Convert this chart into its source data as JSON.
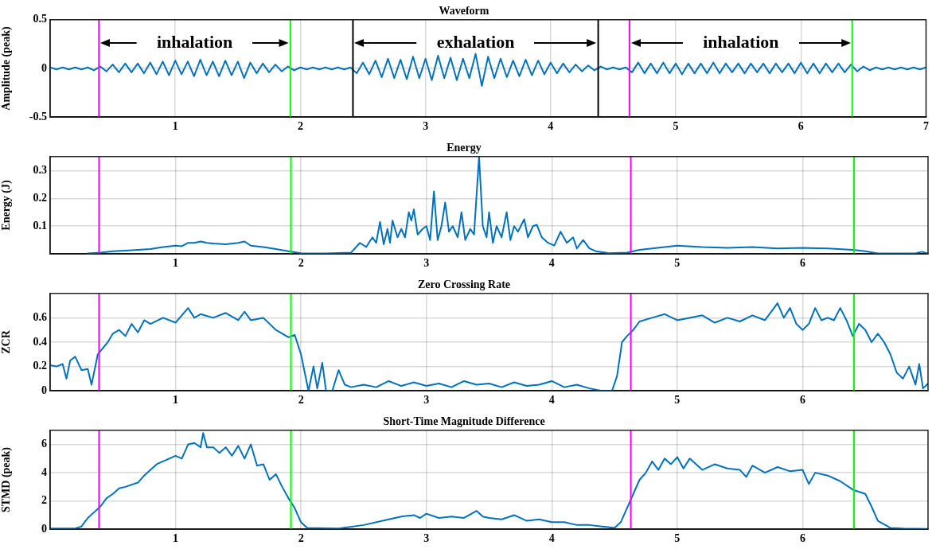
{
  "chart_data": [
    {
      "type": "line",
      "title": "Waveform",
      "ylabel": "Amplitude (peak)",
      "xlim": [
        0,
        7
      ],
      "xticks": [
        1,
        2,
        3,
        4,
        5,
        6,
        7
      ],
      "ylim": [
        -0.5,
        0.5
      ],
      "yticks": [
        -0.5,
        0,
        0.5
      ],
      "grid": true,
      "legend": false,
      "x": [
        0,
        0.05,
        0.1,
        0.15,
        0.2,
        0.25,
        0.3,
        0.35,
        0.4,
        0.45,
        0.5,
        0.55,
        0.6,
        0.65,
        0.7,
        0.75,
        0.8,
        0.85,
        0.9,
        0.95,
        1,
        1.05,
        1.1,
        1.15,
        1.2,
        1.25,
        1.3,
        1.35,
        1.4,
        1.45,
        1.5,
        1.55,
        1.6,
        1.65,
        1.7,
        1.75,
        1.8,
        1.85,
        1.9,
        1.95,
        2,
        2.05,
        2.1,
        2.15,
        2.2,
        2.25,
        2.3,
        2.35,
        2.4,
        2.45,
        2.5,
        2.55,
        2.6,
        2.65,
        2.7,
        2.75,
        2.8,
        2.85,
        2.9,
        2.95,
        3,
        3.05,
        3.1,
        3.15,
        3.2,
        3.25,
        3.3,
        3.35,
        3.4,
        3.45,
        3.5,
        3.55,
        3.6,
        3.65,
        3.7,
        3.75,
        3.8,
        3.85,
        3.9,
        3.95,
        4,
        4.05,
        4.1,
        4.15,
        4.2,
        4.25,
        4.3,
        4.35,
        4.4,
        4.45,
        4.5,
        4.55,
        4.6,
        4.65,
        4.7,
        4.75,
        4.8,
        4.85,
        4.9,
        4.95,
        5,
        5.05,
        5.1,
        5.15,
        5.2,
        5.25,
        5.3,
        5.35,
        5.4,
        5.45,
        5.5,
        5.55,
        5.6,
        5.65,
        5.7,
        5.75,
        5.8,
        5.85,
        5.9,
        5.95,
        6,
        6.05,
        6.1,
        6.15,
        6.2,
        6.25,
        6.3,
        6.35,
        6.4,
        6.45,
        6.5,
        6.55,
        6.6,
        6.65,
        6.7,
        6.75,
        6.8,
        6.85,
        6.9,
        6.95,
        7
      ],
      "series": [
        {
          "color": "#0072bd",
          "values": [
            0.01,
            -0.01,
            0.01,
            -0.01,
            0.01,
            -0.01,
            0.01,
            -0.02,
            0.02,
            -0.03,
            0.04,
            -0.04,
            0.05,
            -0.04,
            0.05,
            -0.05,
            0.06,
            -0.06,
            0.07,
            -0.07,
            0.08,
            -0.06,
            0.07,
            -0.08,
            0.09,
            -0.07,
            0.07,
            -0.08,
            0.08,
            -0.07,
            0.07,
            -0.1,
            0.06,
            -0.05,
            0.05,
            -0.04,
            0.04,
            -0.03,
            0.02,
            -0.02,
            0.01,
            -0.01,
            0.01,
            -0.01,
            0.01,
            -0.01,
            0.01,
            -0.01,
            0.01,
            -0.05,
            0.06,
            -0.06,
            0.08,
            -0.09,
            0.1,
            -0.1,
            0.09,
            -0.11,
            0.12,
            -0.1,
            0.1,
            -0.12,
            0.13,
            -0.1,
            0.11,
            -0.12,
            0.1,
            -0.1,
            0.15,
            -0.18,
            0.12,
            -0.1,
            0.1,
            -0.09,
            0.08,
            -0.08,
            0.09,
            -0.07,
            0.08,
            -0.06,
            0.06,
            -0.05,
            0.05,
            -0.04,
            0.04,
            -0.03,
            0.03,
            -0.02,
            0.02,
            -0.01,
            0.01,
            -0.01,
            0.01,
            -0.04,
            0.06,
            -0.05,
            0.05,
            -0.05,
            0.06,
            -0.05,
            0.05,
            -0.06,
            0.05,
            -0.05,
            0.05,
            -0.05,
            0.06,
            -0.05,
            0.05,
            -0.04,
            0.05,
            -0.05,
            0.05,
            -0.04,
            0.05,
            -0.05,
            0.05,
            -0.04,
            0.05,
            -0.05,
            0.06,
            -0.05,
            0.05,
            -0.05,
            0.05,
            -0.04,
            0.05,
            -0.04,
            0.04,
            -0.03,
            0.02,
            -0.02,
            0.01,
            -0.01,
            0.01,
            -0.01,
            0.01,
            -0.01,
            0.01,
            -0.01,
            0.01
          ]
        }
      ],
      "ref_lines": [
        {
          "axis": "x",
          "value": 0.39,
          "color": "#ff00ff"
        },
        {
          "axis": "x",
          "value": 1.92,
          "color": "#00ff00"
        },
        {
          "axis": "x",
          "value": 2.42,
          "color": "#000000"
        },
        {
          "axis": "x",
          "value": 4.38,
          "color": "#000000"
        },
        {
          "axis": "x",
          "value": 4.63,
          "color": "#ff00ff"
        },
        {
          "axis": "x",
          "value": 6.41,
          "color": "#00ff00"
        }
      ],
      "annotations": [
        "inhalation",
        "exhalation",
        "inhalation"
      ]
    },
    {
      "type": "line",
      "title": "Energy",
      "ylabel": "Energy (J)",
      "xlim": [
        0,
        7
      ],
      "xticks": [
        1,
        2,
        3,
        4,
        5,
        6
      ],
      "ylim": [
        0,
        0.35
      ],
      "yticks": [
        0.1,
        0.2,
        0.3
      ],
      "grid": true,
      "legend": false,
      "series": [
        {
          "color": "#0072bd",
          "x": [
            0.3,
            0.4,
            0.5,
            0.6,
            0.7,
            0.8,
            0.9,
            1,
            1.05,
            1.1,
            1.15,
            1.2,
            1.25,
            1.3,
            1.4,
            1.5,
            1.55,
            1.6,
            1.7,
            1.8,
            1.9,
            2,
            2.2,
            2.4,
            2.47,
            2.52,
            2.57,
            2.6,
            2.63,
            2.66,
            2.69,
            2.71,
            2.73,
            2.77,
            2.8,
            2.83,
            2.86,
            2.88,
            2.9,
            2.93,
            2.97,
            3,
            3.03,
            3.06,
            3.09,
            3.12,
            3.15,
            3.18,
            3.21,
            3.25,
            3.28,
            3.31,
            3.35,
            3.38,
            3.42,
            3.45,
            3.48,
            3.5,
            3.53,
            3.56,
            3.6,
            3.64,
            3.67,
            3.7,
            3.73,
            3.78,
            3.81,
            3.85,
            3.88,
            3.92,
            3.97,
            4.02,
            4.07,
            4.12,
            4.17,
            4.2,
            4.25,
            4.3,
            4.35,
            4.45,
            4.6,
            4.7,
            4.8,
            4.9,
            5,
            5.2,
            5.4,
            5.6,
            5.8,
            6,
            6.2,
            6.4,
            6.5,
            6.6,
            6.9,
            6.95,
            7
          ],
          "values": [
            0.002,
            0.005,
            0.01,
            0.012,
            0.015,
            0.018,
            0.025,
            0.03,
            0.028,
            0.04,
            0.04,
            0.045,
            0.04,
            0.038,
            0.035,
            0.04,
            0.045,
            0.03,
            0.025,
            0.018,
            0.01,
            0.003,
            0.002,
            0.005,
            0.04,
            0.025,
            0.06,
            0.04,
            0.115,
            0.035,
            0.09,
            0.04,
            0.12,
            0.06,
            0.09,
            0.06,
            0.15,
            0.12,
            0.16,
            0.07,
            0.09,
            0.1,
            0.05,
            0.225,
            0.05,
            0.1,
            0.185,
            0.08,
            0.1,
            0.06,
            0.15,
            0.05,
            0.09,
            0.07,
            0.35,
            0.1,
            0.06,
            0.15,
            0.04,
            0.1,
            0.06,
            0.15,
            0.05,
            0.1,
            0.08,
            0.125,
            0.06,
            0.1,
            0.105,
            0.06,
            0.04,
            0.03,
            0.08,
            0.04,
            0.06,
            0.02,
            0.05,
            0.02,
            0.01,
            0.003,
            0.005,
            0.015,
            0.02,
            0.025,
            0.03,
            0.025,
            0.022,
            0.025,
            0.02,
            0.022,
            0.02,
            0.015,
            0.01,
            0.002,
            0.002,
            0.008,
            0.002
          ]
        }
      ],
      "ref_lines": [
        {
          "axis": "x",
          "value": 0.39,
          "color": "#ff00ff"
        },
        {
          "axis": "x",
          "value": 1.92,
          "color": "#00ff00"
        },
        {
          "axis": "x",
          "value": 4.63,
          "color": "#ff00ff"
        },
        {
          "axis": "x",
          "value": 6.41,
          "color": "#00ff00"
        }
      ]
    },
    {
      "type": "line",
      "title": "Zero Crossing Rate",
      "ylabel": "ZCR",
      "xlim": [
        0,
        7
      ],
      "xticks": [
        1,
        2,
        3,
        4,
        5,
        6
      ],
      "ylim": [
        0,
        0.8
      ],
      "yticks": [
        0,
        0.2,
        0.4,
        0.6
      ],
      "grid": true,
      "legend": false,
      "series": [
        {
          "color": "#0072bd",
          "x": [
            0,
            0.05,
            0.1,
            0.13,
            0.16,
            0.2,
            0.25,
            0.3,
            0.33,
            0.38,
            0.42,
            0.46,
            0.5,
            0.55,
            0.6,
            0.65,
            0.7,
            0.75,
            0.8,
            0.9,
            1,
            1.05,
            1.1,
            1.15,
            1.2,
            1.3,
            1.4,
            1.5,
            1.55,
            1.6,
            1.7,
            1.8,
            1.9,
            1.95,
            2,
            2.03,
            2.06,
            2.1,
            2.13,
            2.17,
            2.2,
            2.25,
            2.3,
            2.35,
            2.4,
            2.5,
            2.6,
            2.7,
            2.8,
            2.9,
            3,
            3.1,
            3.2,
            3.3,
            3.4,
            3.5,
            3.6,
            3.7,
            3.8,
            3.9,
            4,
            4.1,
            4.2,
            4.3,
            4.4,
            4.48,
            4.52,
            4.56,
            4.6,
            4.65,
            4.7,
            4.8,
            4.9,
            5,
            5.1,
            5.2,
            5.3,
            5.4,
            5.5,
            5.6,
            5.7,
            5.8,
            5.85,
            5.9,
            5.95,
            6,
            6.05,
            6.1,
            6.15,
            6.2,
            6.25,
            6.3,
            6.35,
            6.4,
            6.45,
            6.5,
            6.55,
            6.6,
            6.65,
            6.7,
            6.75,
            6.8,
            6.85,
            6.9,
            6.93,
            6.96,
            7
          ],
          "values": [
            0.21,
            0.2,
            0.22,
            0.1,
            0.25,
            0.28,
            0.17,
            0.18,
            0.05,
            0.3,
            0.35,
            0.4,
            0.47,
            0.5,
            0.45,
            0.55,
            0.48,
            0.58,
            0.55,
            0.6,
            0.56,
            0.62,
            0.68,
            0.6,
            0.63,
            0.6,
            0.64,
            0.58,
            0.65,
            0.58,
            0.6,
            0.5,
            0.44,
            0.46,
            0.3,
            0.15,
            0,
            0.2,
            0.02,
            0.23,
            0,
            0,
            0.17,
            0.05,
            0.03,
            0.05,
            0.03,
            0.08,
            0.04,
            0.07,
            0.04,
            0.06,
            0.03,
            0.08,
            0.05,
            0.06,
            0.03,
            0.07,
            0.04,
            0.05,
            0.08,
            0.03,
            0.05,
            0.02,
            0,
            0,
            0.12,
            0.4,
            0.45,
            0.5,
            0.57,
            0.6,
            0.63,
            0.58,
            0.6,
            0.62,
            0.56,
            0.6,
            0.57,
            0.62,
            0.58,
            0.72,
            0.6,
            0.68,
            0.55,
            0.5,
            0.55,
            0.68,
            0.58,
            0.6,
            0.58,
            0.68,
            0.58,
            0.45,
            0.55,
            0.5,
            0.4,
            0.47,
            0.4,
            0.3,
            0.15,
            0.1,
            0.2,
            0.05,
            0.22,
            0.02,
            0.06
          ]
        }
      ],
      "ref_lines": [
        {
          "axis": "x",
          "value": 0.39,
          "color": "#ff00ff"
        },
        {
          "axis": "x",
          "value": 1.92,
          "color": "#00ff00"
        },
        {
          "axis": "x",
          "value": 4.63,
          "color": "#ff00ff"
        },
        {
          "axis": "x",
          "value": 6.41,
          "color": "#00ff00"
        }
      ]
    },
    {
      "type": "line",
      "title": "Short-Time Magnitude Difference",
      "ylabel": "STMD (peak)",
      "xlim": [
        0,
        7
      ],
      "xticks": [
        1,
        2,
        3,
        4,
        5,
        6
      ],
      "ylim": [
        0,
        7
      ],
      "yticks": [
        0,
        2,
        4,
        6
      ],
      "grid": true,
      "legend": false,
      "series": [
        {
          "color": "#0072bd",
          "x": [
            0,
            0.2,
            0.25,
            0.3,
            0.35,
            0.4,
            0.45,
            0.5,
            0.55,
            0.6,
            0.7,
            0.75,
            0.8,
            0.85,
            0.9,
            1,
            1.05,
            1.1,
            1.15,
            1.2,
            1.22,
            1.25,
            1.3,
            1.35,
            1.4,
            1.45,
            1.5,
            1.55,
            1.6,
            1.65,
            1.7,
            1.75,
            1.8,
            1.85,
            1.9,
            1.95,
            2,
            2.05,
            2.3,
            2.5,
            2.7,
            2.8,
            2.9,
            2.95,
            3,
            3.1,
            3.2,
            3.3,
            3.4,
            3.45,
            3.5,
            3.6,
            3.7,
            3.8,
            3.9,
            4,
            4.1,
            4.2,
            4.3,
            4.4,
            4.5,
            4.55,
            4.6,
            4.65,
            4.7,
            4.75,
            4.8,
            4.85,
            4.9,
            4.95,
            5,
            5.05,
            5.1,
            5.2,
            5.3,
            5.4,
            5.5,
            5.55,
            5.6,
            5.7,
            5.8,
            5.9,
            6,
            6.05,
            6.1,
            6.2,
            6.3,
            6.4,
            6.5,
            6.55,
            6.6,
            6.7,
            6.8,
            7
          ],
          "values": [
            0.05,
            0.05,
            0.2,
            0.8,
            1.2,
            1.6,
            2.2,
            2.5,
            2.9,
            3,
            3.3,
            3.8,
            4.2,
            4.6,
            4.8,
            5.2,
            5,
            6,
            6.1,
            5.8,
            6.8,
            5.8,
            5.8,
            5.4,
            5.8,
            5.2,
            5.9,
            5,
            6,
            4.5,
            4.6,
            3.5,
            3.9,
            3,
            2.2,
            1.5,
            0.5,
            0.1,
            0.05,
            0.3,
            0.7,
            0.9,
            1,
            0.8,
            1.1,
            0.8,
            0.9,
            0.8,
            1.3,
            0.9,
            0.8,
            0.7,
            1,
            0.6,
            0.7,
            0.5,
            0.5,
            0.3,
            0.3,
            0.2,
            0.1,
            0.5,
            1.5,
            2.5,
            3.5,
            4,
            4.8,
            4.2,
            5,
            4.6,
            5.1,
            4.3,
            5,
            4.2,
            4.6,
            4.3,
            4.2,
            3.7,
            4.5,
            4,
            4.4,
            4.1,
            4.2,
            3.2,
            4,
            3.8,
            3.4,
            2.8,
            2.5,
            1.6,
            0.6,
            0.1,
            0.05,
            0.02
          ]
        }
      ],
      "ref_lines": [
        {
          "axis": "x",
          "value": 0.39,
          "color": "#ff00ff"
        },
        {
          "axis": "x",
          "value": 1.92,
          "color": "#00ff00"
        },
        {
          "axis": "x",
          "value": 4.63,
          "color": "#ff00ff"
        },
        {
          "axis": "x",
          "value": 6.41,
          "color": "#00ff00"
        }
      ]
    }
  ]
}
